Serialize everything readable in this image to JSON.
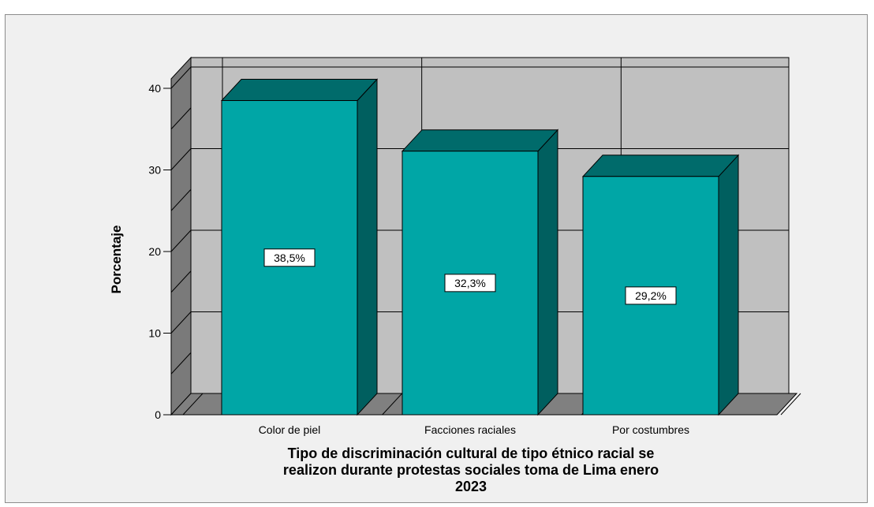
{
  "chart_data": {
    "type": "bar",
    "categories": [
      "Color de piel",
      "Facciones raciales",
      "Por costumbres"
    ],
    "values": [
      38.5,
      32.3,
      29.2
    ],
    "data_labels": [
      "38,5%",
      "32,3%",
      "29,2%"
    ],
    "ylabel": "Porcentaje",
    "xlabel_lines": [
      "Tipo de discriminación cultural de tipo étnico racial se",
      "realizon durante protestas sociales toma de Lima enero",
      "2023"
    ],
    "ylim": [
      0,
      40
    ],
    "yticks": [
      0,
      10,
      20,
      30,
      40
    ],
    "grid": true,
    "style": "3d",
    "colors": {
      "bar_front": "#00a6a6",
      "bar_top": "#006b6b",
      "bar_side": "#005f5f",
      "back_wall": "#c0c0c0",
      "side_wall": "#7a7a7a",
      "floor": "#808080",
      "frame_bg": "#f0f0f0"
    }
  }
}
